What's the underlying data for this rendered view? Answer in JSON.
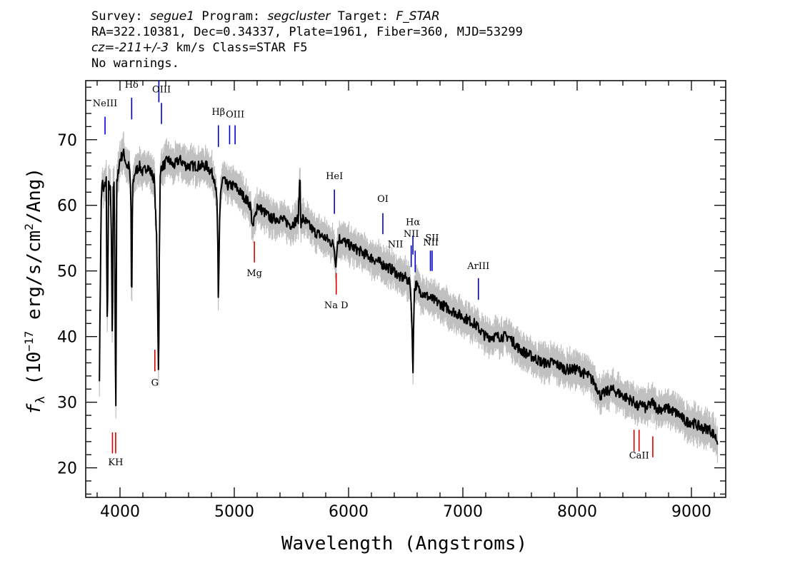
{
  "header": {
    "survey_label": "Survey:",
    "survey": "segue1",
    "program_label": "Program:",
    "program": "segcluster",
    "target_label": "Target:",
    "target": "F_STAR",
    "line2": "RA=322.10381, Dec=0.34337, Plate=1961, Fiber=360, MJD=53299",
    "cz": "cz=",
    "cz_value": "-211+/-3",
    "cz_rest": " km/s Class=STAR F5",
    "line4": "No warnings."
  },
  "chart_data": {
    "type": "line",
    "xlabel": "Wavelength (Angstroms)",
    "ylabel_prefix": "f",
    "ylabel_sub": "λ",
    "ylabel_mid": " (10",
    "ylabel_exp": "−17",
    "ylabel_units": " erg/s/cm",
    "ylabel_sq": "2",
    "ylabel_end": "/Ang)",
    "xlim": [
      3700,
      9300
    ],
    "ylim": [
      15.5,
      79
    ],
    "x_ticks": [
      "4000",
      "5000",
      "6000",
      "7000",
      "8000",
      "9000"
    ],
    "x_tick_values": [
      4000,
      5000,
      6000,
      7000,
      8000,
      9000
    ],
    "y_ticks": [
      "20",
      "30",
      "40",
      "50",
      "60",
      "70"
    ],
    "y_tick_values": [
      20,
      30,
      40,
      50,
      60,
      70
    ],
    "x_minor_step": 200,
    "y_minor_step": 2,
    "colors": {
      "flux": "#000000",
      "error": "#c0c0c0",
      "emission": "#0000cc",
      "absorption": "#dd0000"
    },
    "series": [
      {
        "name": "flux",
        "x": [
          3820,
          3835,
          3845,
          3855,
          3868,
          3880,
          3885,
          3890,
          3900,
          3915,
          3925,
          3934,
          3940,
          3950,
          3960,
          3965,
          3970,
          3980,
          3990,
          4000,
          4030,
          4060,
          4080,
          4095,
          4102,
          4110,
          4130,
          4170,
          4200,
          4240,
          4270,
          4300,
          4320,
          4330,
          4337,
          4341,
          4345,
          4352,
          4362,
          4380,
          4420,
          4470,
          4520,
          4580,
          4640,
          4700,
          4760,
          4800,
          4830,
          4850,
          4857,
          4861,
          4865,
          4872,
          4880,
          4900,
          4940,
          5000,
          5050,
          5100,
          5140,
          5165,
          5172,
          5180,
          5200,
          5260,
          5320,
          5400,
          5500,
          5560,
          5575,
          5582,
          5600,
          5700,
          5800,
          5870,
          5890,
          5900,
          5920,
          6000,
          6100,
          6200,
          6300,
          6400,
          6450,
          6500,
          6540,
          6555,
          6563,
          6568,
          6575,
          6590,
          6620,
          6700,
          6800,
          6900,
          7000,
          7100,
          7150,
          7200,
          7300,
          7400,
          7500,
          7600,
          7700,
          7800,
          7900,
          8000,
          8100,
          8150,
          8180,
          8200,
          8300,
          8400,
          8500,
          8540,
          8560,
          8600,
          8662,
          8700,
          8800,
          8900,
          8950,
          9000,
          9100,
          9150,
          9200,
          9230
        ],
        "y": [
          34,
          60,
          64,
          62,
          63,
          64,
          48,
          41,
          63,
          63,
          55,
          36,
          63,
          63,
          36,
          28,
          63,
          64,
          66,
          67,
          68,
          66,
          66,
          62,
          42,
          63,
          65,
          66,
          65,
          66,
          65,
          64,
          55,
          44,
          34,
          42,
          55,
          64,
          66,
          66,
          67,
          66,
          67,
          66,
          66,
          66,
          66,
          65,
          64,
          60,
          52,
          43,
          50,
          58,
          62,
          64,
          63,
          63,
          62,
          61,
          60,
          56,
          58,
          58,
          60,
          59,
          58,
          58,
          57,
          58,
          65,
          57,
          58,
          56,
          55,
          54,
          51,
          54,
          55,
          54,
          53,
          52,
          51,
          50,
          49,
          49,
          48,
          42,
          33,
          41,
          47,
          48,
          47,
          46,
          45,
          44,
          43,
          42,
          41,
          40,
          40,
          40,
          38,
          37,
          36,
          36,
          35,
          35,
          34,
          33,
          32,
          31,
          32,
          31,
          30,
          29,
          30,
          29,
          30,
          29,
          29,
          28,
          27,
          27,
          26,
          26,
          25,
          24
        ]
      }
    ],
    "emission_lines": [
      {
        "label": "NeIII",
        "wave": 3869,
        "y1": 70.8,
        "y2": 73.5,
        "ly": 75.1
      },
      {
        "label": "Hδ",
        "wave": 4102,
        "y1": 73.1,
        "y2": 76.4,
        "ly": 77.9
      },
      {
        "label": "OIII",
        "wave": 4340,
        "y1": 75.7,
        "y2": 79.0,
        "ly": -1
      },
      {
        "label": "OIII",
        "wave": 4363,
        "y1": 72.4,
        "y2": 75.6,
        "ly": 77.2
      },
      {
        "label": "Hβ",
        "wave": 4861,
        "y1": 68.9,
        "y2": 72.2,
        "ly": 73.8
      },
      {
        "label": "OIII",
        "wave": 4959,
        "y1": 69.3,
        "y2": 72.2,
        "ly": -1
      },
      {
        "label": "OIII",
        "wave": 5007,
        "y1": 69.3,
        "y2": 72.2,
        "ly": 73.4
      },
      {
        "label": "HeI",
        "wave": 5876,
        "y1": 58.7,
        "y2": 62.4,
        "ly": 64.0
      },
      {
        "label": "OI",
        "wave": 6300,
        "y1": 55.6,
        "y2": 58.8,
        "ly": 60.5
      },
      {
        "label": "NII",
        "wave": 6548,
        "y1": 50.6,
        "y2": 53.9,
        "ly": 55.2
      },
      {
        "label": "Hα",
        "wave": 6563,
        "y1": 52.5,
        "y2": 55.4,
        "ly": 57.0
      },
      {
        "label": "NII",
        "wave": 6583,
        "y1": 49.8,
        "y2": 53.1,
        "ly": -1
      },
      {
        "label": "SII",
        "wave": 6716,
        "y1": 50.0,
        "y2": 53.1,
        "ly": -1
      },
      {
        "label": "SII",
        "wave": 6731,
        "y1": 50.0,
        "y2": 53.1,
        "ly": 54.6
      },
      {
        "label": "ArIII",
        "wave": 7136,
        "y1": 45.6,
        "y2": 48.9,
        "ly": 50.3
      }
    ],
    "emission_text": [
      {
        "label": "NII",
        "wave": 6410,
        "ly": 53.6
      },
      {
        "label": "NII",
        "wave": 6720,
        "ly": 53.9
      }
    ],
    "absorption_lines": [
      {
        "label": "",
        "wave": 3934,
        "y1": 22.2,
        "y2": 25.4,
        "ly": -1
      },
      {
        "label": "KH",
        "wave": 3962,
        "y1": 22.2,
        "y2": 25.4,
        "ly": 20.4
      },
      {
        "label": "G",
        "wave": 4305,
        "y1": 34.7,
        "y2": 38.0,
        "ly": 32.5
      },
      {
        "label": "Mg",
        "wave": 5176,
        "y1": 51.3,
        "y2": 54.5,
        "ly": 49.2
      },
      {
        "label": "Na D",
        "wave": 5892,
        "y1": 46.4,
        "y2": 49.7,
        "ly": 44.3
      },
      {
        "label": "",
        "wave": 8498,
        "y1": 22.5,
        "y2": 25.8,
        "ly": -1
      },
      {
        "label": "CaII",
        "wave": 8542,
        "y1": 22.5,
        "y2": 25.8,
        "ly": 21.4
      },
      {
        "label": "",
        "wave": 8662,
        "y1": 21.6,
        "y2": 24.8,
        "ly": -1
      }
    ]
  }
}
